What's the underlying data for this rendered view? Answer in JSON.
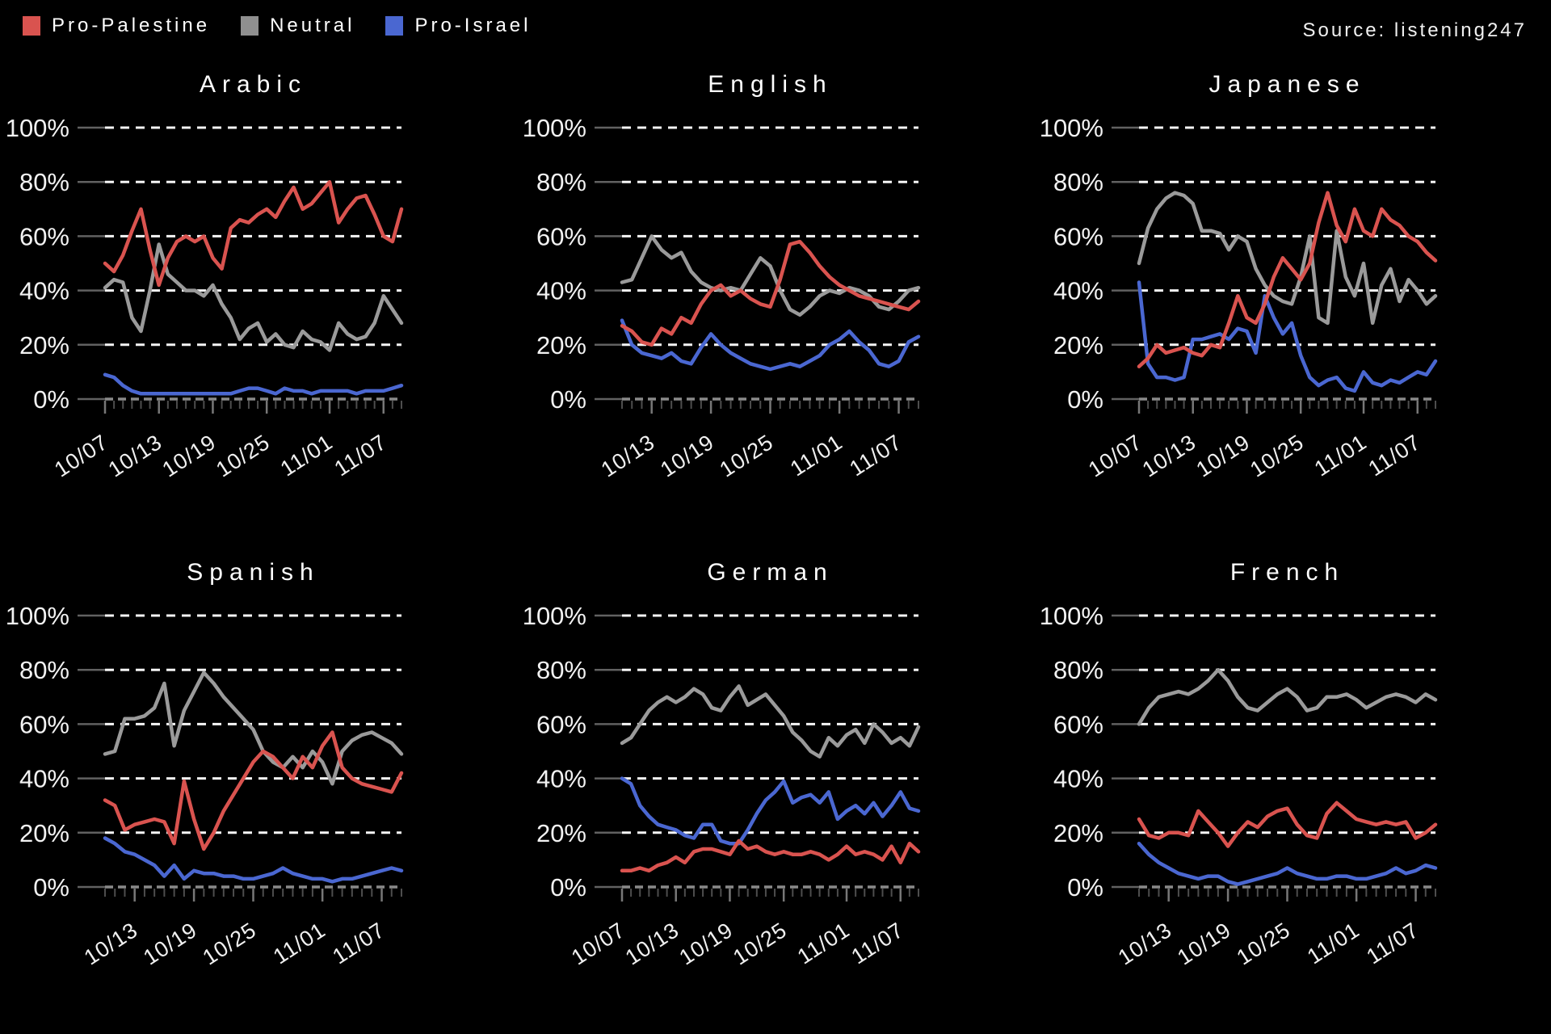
{
  "header": {
    "legend": [
      {
        "label": "Pro-Palestine",
        "color": "#d9534f"
      },
      {
        "label": "Neutral",
        "color": "#8f8f8f"
      },
      {
        "label": "Pro-Israel",
        "color": "#4a67d1"
      }
    ],
    "source": "Source: listening247"
  },
  "colors": {
    "pro_palestine": "#d9534f",
    "neutral": "#9a9a9a",
    "pro_israel": "#4a67d1",
    "grid_line": "#f5f5f5",
    "zero_line": "#8a8a8a",
    "background": "#000000",
    "text": "#f2f2f2"
  },
  "chart_data": [
    {
      "type": "line",
      "title": "Arabic",
      "ylabel": "",
      "xlabel": "",
      "ylim": [
        0,
        100
      ],
      "yticks": [
        0,
        20,
        40,
        60,
        80,
        100
      ],
      "ytick_suffix": "%",
      "grid": true,
      "legend_position": "figure-top-left",
      "x_start_date": "10/07",
      "x_ticks": [
        [
          0,
          "10/07"
        ],
        [
          6,
          "10/13"
        ],
        [
          12,
          "10/19"
        ],
        [
          18,
          "10/25"
        ],
        [
          25,
          "11/01"
        ],
        [
          31,
          "11/07"
        ]
      ],
      "series": [
        {
          "name": "Pro-Israel",
          "color": "#4a67d1",
          "values": [
            9,
            8,
            5,
            3,
            2,
            2,
            2,
            2,
            2,
            2,
            2,
            2,
            2,
            2,
            2,
            3,
            4,
            4,
            3,
            2,
            4,
            3,
            3,
            2,
            3,
            3,
            3,
            3,
            2,
            3,
            3,
            3,
            4,
            5
          ]
        },
        {
          "name": "Neutral",
          "color": "#9a9a9a",
          "values": [
            41,
            44,
            43,
            30,
            25,
            40,
            57,
            46,
            43,
            40,
            40,
            38,
            42,
            35,
            30,
            22,
            26,
            28,
            21,
            24,
            20,
            19,
            25,
            22,
            21,
            18,
            28,
            24,
            22,
            23,
            28,
            38,
            33,
            28
          ]
        },
        {
          "name": "Pro-Palestine",
          "color": "#d9534f",
          "values": [
            50,
            47,
            53,
            62,
            70,
            55,
            42,
            52,
            58,
            60,
            58,
            60,
            52,
            48,
            63,
            66,
            65,
            68,
            70,
            67,
            73,
            78,
            70,
            72,
            76,
            80,
            65,
            70,
            74,
            75,
            68,
            60,
            58,
            70
          ]
        }
      ]
    },
    {
      "type": "line",
      "title": "English",
      "ylabel": "",
      "xlabel": "",
      "ylim": [
        0,
        100
      ],
      "yticks": [
        0,
        20,
        40,
        60,
        80,
        100
      ],
      "ytick_suffix": "%",
      "grid": true,
      "x_start_date": "10/10",
      "x_ticks": [
        [
          3,
          "10/13"
        ],
        [
          9,
          "10/19"
        ],
        [
          15,
          "10/25"
        ],
        [
          22,
          "11/01"
        ],
        [
          28,
          "11/07"
        ]
      ],
      "series": [
        {
          "name": "Pro-Israel",
          "color": "#4a67d1",
          "values": [
            29,
            20,
            17,
            16,
            15,
            17,
            14,
            13,
            19,
            24,
            20,
            17,
            15,
            13,
            12,
            11,
            12,
            13,
            12,
            14,
            16,
            20,
            22,
            25,
            21,
            18,
            13,
            12,
            14,
            21,
            23
          ]
        },
        {
          "name": "Neutral",
          "color": "#9a9a9a",
          "values": [
            43,
            44,
            52,
            60,
            55,
            52,
            54,
            47,
            43,
            41,
            40,
            41,
            40,
            46,
            52,
            49,
            40,
            33,
            31,
            34,
            38,
            40,
            39,
            41,
            40,
            38,
            34,
            33,
            36,
            40,
            41
          ]
        },
        {
          "name": "Pro-Palestine",
          "color": "#d9534f",
          "values": [
            27,
            25,
            21,
            20,
            26,
            24,
            30,
            28,
            35,
            40,
            42,
            38,
            40,
            37,
            35,
            34,
            44,
            57,
            58,
            54,
            49,
            45,
            42,
            40,
            38,
            37,
            36,
            35,
            34,
            33,
            36
          ]
        }
      ]
    },
    {
      "type": "line",
      "title": "Japanese",
      "ylabel": "",
      "xlabel": "",
      "ylim": [
        0,
        100
      ],
      "yticks": [
        0,
        20,
        40,
        60,
        80,
        100
      ],
      "ytick_suffix": "%",
      "grid": true,
      "x_start_date": "10/07",
      "x_ticks": [
        [
          0,
          "10/07"
        ],
        [
          6,
          "10/13"
        ],
        [
          12,
          "10/19"
        ],
        [
          18,
          "10/25"
        ],
        [
          25,
          "11/01"
        ],
        [
          31,
          "11/07"
        ]
      ],
      "series": [
        {
          "name": "Pro-Israel",
          "color": "#4a67d1",
          "values": [
            43,
            13,
            8,
            8,
            7,
            8,
            22,
            22,
            23,
            24,
            22,
            26,
            25,
            17,
            38,
            30,
            24,
            28,
            16,
            8,
            5,
            7,
            8,
            4,
            3,
            10,
            6,
            5,
            7,
            6,
            8,
            10,
            9,
            14
          ]
        },
        {
          "name": "Neutral",
          "color": "#9a9a9a",
          "values": [
            50,
            63,
            70,
            74,
            76,
            75,
            72,
            62,
            62,
            61,
            55,
            60,
            58,
            48,
            42,
            38,
            36,
            35,
            45,
            60,
            30,
            28,
            62,
            45,
            38,
            50,
            28,
            42,
            48,
            36,
            44,
            40,
            35,
            38
          ]
        },
        {
          "name": "Pro-Palestine",
          "color": "#d9534f",
          "values": [
            12,
            15,
            20,
            17,
            18,
            19,
            17,
            16,
            20,
            19,
            28,
            38,
            30,
            28,
            35,
            45,
            52,
            48,
            44,
            50,
            65,
            76,
            64,
            58,
            70,
            62,
            60,
            70,
            66,
            64,
            60,
            58,
            54,
            51
          ]
        }
      ]
    },
    {
      "type": "line",
      "title": "Spanish",
      "ylabel": "",
      "xlabel": "",
      "ylim": [
        0,
        100
      ],
      "yticks": [
        0,
        20,
        40,
        60,
        80,
        100
      ],
      "ytick_suffix": "%",
      "grid": true,
      "x_start_date": "10/10",
      "x_ticks": [
        [
          3,
          "10/13"
        ],
        [
          9,
          "10/19"
        ],
        [
          15,
          "10/25"
        ],
        [
          22,
          "11/01"
        ],
        [
          28,
          "11/07"
        ]
      ],
      "series": [
        {
          "name": "Pro-Israel",
          "color": "#4a67d1",
          "values": [
            18,
            16,
            13,
            12,
            10,
            8,
            4,
            8,
            3,
            6,
            5,
            5,
            4,
            4,
            3,
            3,
            4,
            5,
            7,
            5,
            4,
            3,
            3,
            2,
            3,
            3,
            4,
            5,
            6,
            7,
            6
          ]
        },
        {
          "name": "Neutral",
          "color": "#9a9a9a",
          "values": [
            49,
            50,
            62,
            62,
            63,
            66,
            75,
            52,
            65,
            72,
            79,
            75,
            70,
            66,
            62,
            58,
            50,
            46,
            44,
            48,
            44,
            50,
            46,
            38,
            50,
            54,
            56,
            57,
            55,
            53,
            49
          ]
        },
        {
          "name": "Pro-Palestine",
          "color": "#d9534f",
          "values": [
            32,
            30,
            21,
            23,
            24,
            25,
            24,
            16,
            39,
            25,
            14,
            20,
            28,
            34,
            40,
            46,
            50,
            48,
            44,
            40,
            48,
            44,
            52,
            57,
            44,
            40,
            38,
            37,
            36,
            35,
            42
          ]
        }
      ]
    },
    {
      "type": "line",
      "title": "German",
      "ylabel": "",
      "xlabel": "",
      "ylim": [
        0,
        100
      ],
      "yticks": [
        0,
        20,
        40,
        60,
        80,
        100
      ],
      "ytick_suffix": "%",
      "grid": true,
      "x_start_date": "10/07",
      "x_ticks": [
        [
          0,
          "10/07"
        ],
        [
          6,
          "10/13"
        ],
        [
          12,
          "10/19"
        ],
        [
          18,
          "10/25"
        ],
        [
          25,
          "11/01"
        ],
        [
          31,
          "11/07"
        ]
      ],
      "series": [
        {
          "name": "Pro-Israel",
          "color": "#4a67d1",
          "values": [
            40,
            38,
            30,
            26,
            23,
            22,
            21,
            19,
            18,
            23,
            23,
            17,
            16,
            16,
            21,
            27,
            32,
            35,
            39,
            31,
            33,
            34,
            31,
            35,
            25,
            28,
            30,
            27,
            31,
            26,
            30,
            35,
            29,
            28
          ]
        },
        {
          "name": "Neutral",
          "color": "#9a9a9a",
          "values": [
            53,
            55,
            60,
            65,
            68,
            70,
            68,
            70,
            73,
            71,
            66,
            65,
            70,
            74,
            67,
            69,
            71,
            67,
            63,
            57,
            54,
            50,
            48,
            55,
            52,
            56,
            58,
            53,
            60,
            57,
            53,
            55,
            52,
            59
          ]
        },
        {
          "name": "Pro-Palestine",
          "color": "#d9534f",
          "values": [
            6,
            6,
            7,
            6,
            8,
            9,
            11,
            9,
            13,
            14,
            14,
            13,
            12,
            17,
            14,
            15,
            13,
            12,
            13,
            12,
            12,
            13,
            12,
            10,
            12,
            15,
            12,
            13,
            12,
            10,
            15,
            9,
            16,
            13
          ]
        }
      ]
    },
    {
      "type": "line",
      "title": "French",
      "ylabel": "",
      "xlabel": "",
      "ylim": [
        0,
        100
      ],
      "yticks": [
        0,
        20,
        40,
        60,
        80,
        100
      ],
      "ytick_suffix": "%",
      "grid": true,
      "x_start_date": "10/10",
      "x_ticks": [
        [
          3,
          "10/13"
        ],
        [
          9,
          "10/19"
        ],
        [
          15,
          "10/25"
        ],
        [
          22,
          "11/01"
        ],
        [
          28,
          "11/07"
        ]
      ],
      "series": [
        {
          "name": "Pro-Israel",
          "color": "#4a67d1",
          "values": [
            16,
            12,
            9,
            7,
            5,
            4,
            3,
            4,
            4,
            2,
            1,
            2,
            3,
            4,
            5,
            7,
            5,
            4,
            3,
            3,
            4,
            4,
            3,
            3,
            4,
            5,
            7,
            5,
            6,
            8,
            7
          ]
        },
        {
          "name": "Neutral",
          "color": "#9a9a9a",
          "values": [
            60,
            66,
            70,
            71,
            72,
            71,
            73,
            76,
            80,
            76,
            70,
            66,
            65,
            68,
            71,
            73,
            70,
            65,
            66,
            70,
            70,
            71,
            69,
            66,
            68,
            70,
            71,
            70,
            68,
            71,
            69
          ]
        },
        {
          "name": "Pro-Palestine",
          "color": "#d9534f",
          "values": [
            25,
            19,
            18,
            20,
            20,
            19,
            28,
            24,
            20,
            15,
            20,
            24,
            22,
            26,
            28,
            29,
            23,
            19,
            18,
            27,
            31,
            28,
            25,
            24,
            23,
            24,
            23,
            24,
            18,
            20,
            23
          ]
        }
      ]
    }
  ]
}
